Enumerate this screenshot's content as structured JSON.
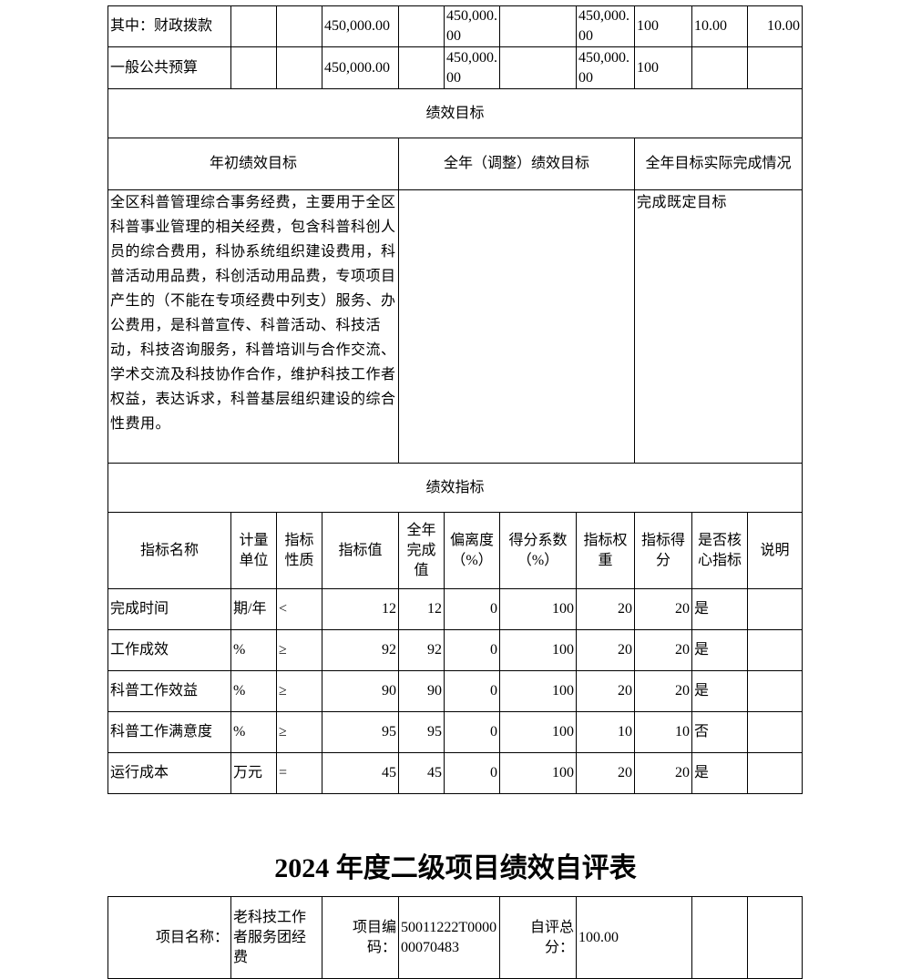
{
  "funds_rows": [
    {
      "label": "其中：财政拨款",
      "c2": "",
      "c3": "",
      "c4": "450,000.00",
      "c5": "",
      "c6": "450,000.00",
      "c7": "",
      "c8": "450,000.00",
      "c9": "100",
      "c10": "10.00",
      "c11": "10.00"
    },
    {
      "label": "一般公共预算",
      "c2": "",
      "c3": "",
      "c4": "450,000.00",
      "c5": "",
      "c6": "450,000.00",
      "c7": "",
      "c8": "450,000.00",
      "c9": "100",
      "c10": "",
      "c11": ""
    }
  ],
  "goals": {
    "section_title": "绩效目标",
    "initial_header": "年初绩效目标",
    "adjusted_header": "全年（调整）绩效目标",
    "actual_header": "全年目标实际完成情况",
    "initial_text": "全区科普管理综合事务经费，主要用于全区科普事业管理的相关经费，包含科普科创人员的综合费用，科协系统组织建设费用，科普活动用品费，科创活动用品费，专项项目产生的（不能在专项经费中列支）服务、办公费用，是科普宣传、科普活动、科技活动，科技咨询服务，科普培训与合作交流、学术交流及科技协作合作，维护科技工作者权益，表达诉求，科普基层组织建设的综合性费用。",
    "adjusted_text": "",
    "actual_text": "完成既定目标"
  },
  "indicators": {
    "section_title": "绩效指标",
    "headers": [
      "指标名称",
      "计量单位",
      "指标性质",
      "指标值",
      "全年完成值",
      "偏离度（%）",
      "得分系数（%）",
      "指标权重",
      "指标得分",
      "是否核心指标",
      "说明"
    ],
    "rows": [
      [
        "完成时间",
        "期/年",
        "<",
        "12",
        "12",
        "0",
        "100",
        "20",
        "20",
        "是",
        ""
      ],
      [
        "工作成效",
        "%",
        "≥",
        "92",
        "92",
        "0",
        "100",
        "20",
        "20",
        "是",
        ""
      ],
      [
        "科普工作效益",
        "%",
        "≥",
        "90",
        "90",
        "0",
        "100",
        "20",
        "20",
        "是",
        ""
      ],
      [
        "科普工作满意度",
        "%",
        "≥",
        "95",
        "95",
        "0",
        "100",
        "10",
        "10",
        "否",
        ""
      ],
      [
        "运行成本",
        "万元",
        "=",
        "45",
        "45",
        "0",
        "100",
        "20",
        "20",
        "是",
        ""
      ]
    ]
  },
  "second_form": {
    "title": "2024 年度二级项目绩效自评表",
    "project_name_label": "项目名称：",
    "project_name": "老科技工作者服务团经费",
    "project_code_label": "项目编码：",
    "project_code": "50011222T000000070483",
    "score_label": "自评总分：",
    "score": "100.00"
  }
}
